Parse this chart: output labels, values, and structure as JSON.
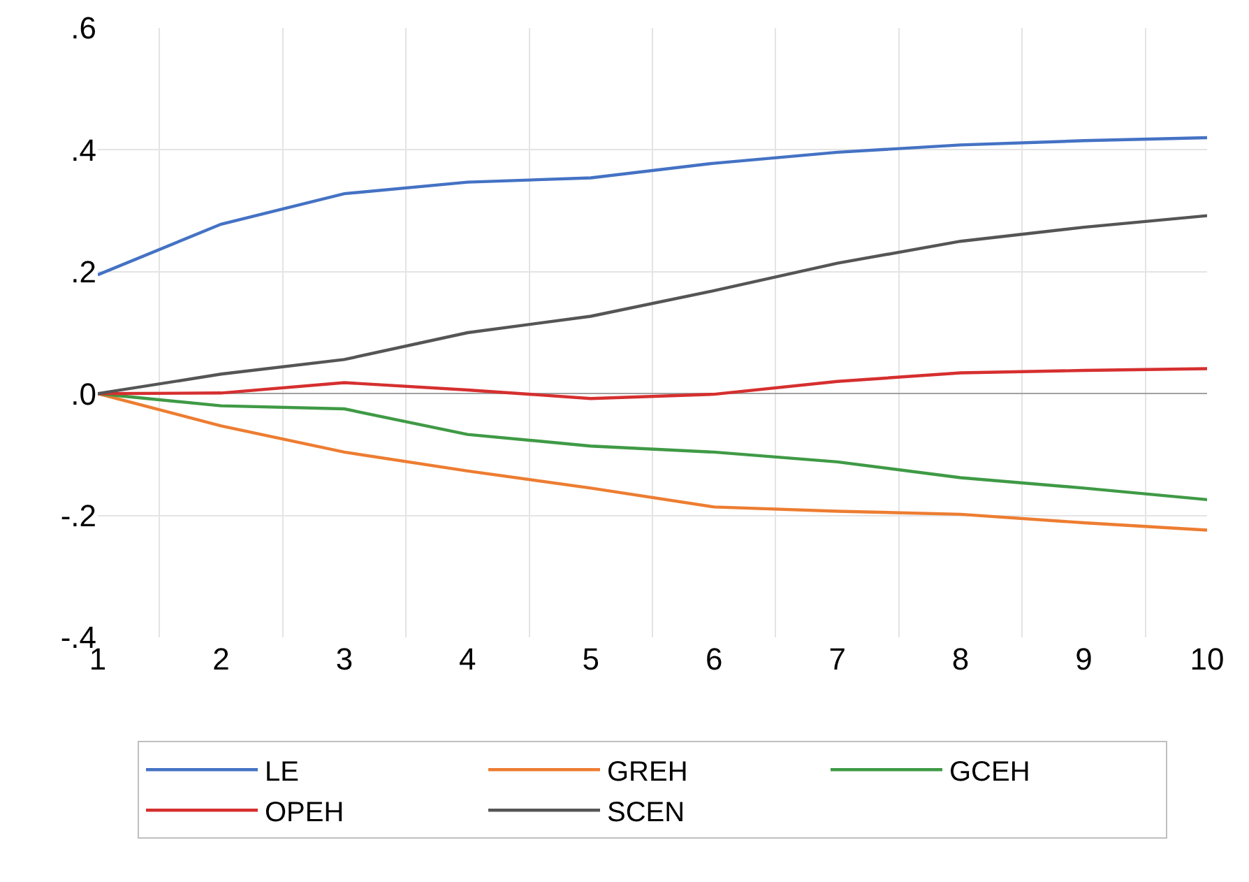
{
  "chart_data": {
    "type": "line",
    "x": [
      1,
      2,
      3,
      4,
      5,
      6,
      7,
      8,
      9,
      10
    ],
    "xlim": [
      1,
      10
    ],
    "xticks": [
      1,
      2,
      3,
      4,
      5,
      6,
      7,
      8,
      9,
      10
    ],
    "ylim": [
      -0.4,
      0.6
    ],
    "yticks": [
      {
        "value": -0.4,
        "label": "-.4"
      },
      {
        "value": -0.2,
        "label": "-.2"
      },
      {
        "value": 0,
        "label": ".0"
      },
      {
        "value": 0.2,
        "label": ".2"
      },
      {
        "value": 0.4,
        "label": ".4"
      },
      {
        "value": 0.6,
        "label": ".6"
      }
    ],
    "grid": true,
    "legend": "bottom",
    "marker": "none",
    "line_style": "solid",
    "series": [
      {
        "name": "LE",
        "color": "#4472c4",
        "values": [
          0.195,
          0.278,
          0.328,
          0.347,
          0.354,
          0.378,
          0.396,
          0.408,
          0.415,
          0.42
        ]
      },
      {
        "name": "GREH",
        "color": "#ed7d31",
        "values": [
          0,
          -0.053,
          -0.096,
          -0.127,
          -0.155,
          -0.186,
          -0.193,
          -0.198,
          -0.212,
          -0.224
        ]
      },
      {
        "name": "GCEH",
        "color": "#3f9a45",
        "values": [
          0,
          -0.02,
          -0.025,
          -0.067,
          -0.086,
          -0.096,
          -0.112,
          -0.138,
          -0.155,
          -0.174
        ]
      },
      {
        "name": "OPEH",
        "color": "#d62f2f",
        "values": [
          0,
          0.001,
          0.018,
          0.006,
          -0.008,
          -0.001,
          0.02,
          0.034,
          0.038,
          0.041
        ]
      },
      {
        "name": "SCEN",
        "color": "#555555",
        "values": [
          0,
          0.032,
          0.056,
          0.1,
          0.127,
          0.169,
          0.214,
          0.25,
          0.273,
          0.292
        ]
      }
    ]
  }
}
